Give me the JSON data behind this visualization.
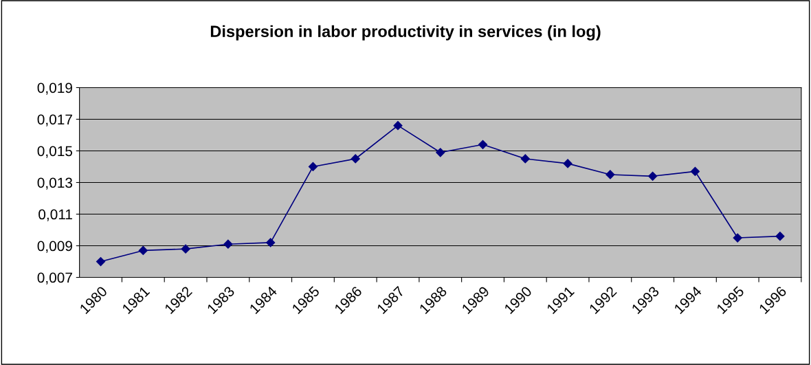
{
  "chart_data": {
    "type": "line",
    "title": "Dispersion in labor productivity in services (in log)",
    "categories": [
      "1980",
      "1981",
      "1982",
      "1983",
      "1984",
      "1985",
      "1986",
      "1987",
      "1988",
      "1989",
      "1990",
      "1991",
      "1992",
      "1993",
      "1994",
      "1995",
      "1996"
    ],
    "series": [
      {
        "color": "#000080",
        "values": [
          0.008,
          0.0087,
          0.0088,
          0.0091,
          0.0092,
          0.014,
          0.0145,
          0.0166,
          0.0149,
          0.0154,
          0.0145,
          0.0142,
          0.0135,
          0.0134,
          0.0137,
          0.0095,
          0.0096
        ]
      }
    ],
    "ylim": [
      0.007,
      0.019
    ],
    "yticks": [
      {
        "value": 0.007,
        "label": "0,007"
      },
      {
        "value": 0.009,
        "label": "0,009"
      },
      {
        "value": 0.011,
        "label": "0,011"
      },
      {
        "value": 0.013,
        "label": "0,013"
      },
      {
        "value": 0.015,
        "label": "0,015"
      },
      {
        "value": 0.017,
        "label": "0,017"
      },
      {
        "value": 0.019,
        "label": "0,019"
      }
    ],
    "grid": "y",
    "marker": "diamond",
    "line_style": "solid",
    "legend": false
  }
}
